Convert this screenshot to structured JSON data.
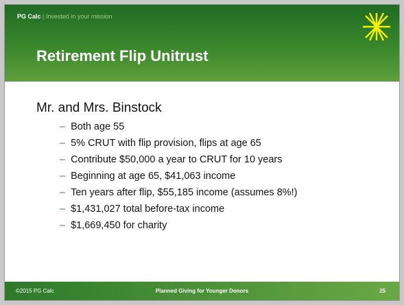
{
  "header": {
    "brand": "PG Calc",
    "separator": "|",
    "tagline": "Invested in your mission",
    "title": "Retirement Flip Unitrust"
  },
  "body": {
    "heading": "Mr. and Mrs. Binstock",
    "bullets": [
      "Both age 55",
      "5% CRUT with flip provision, flips at age 65",
      "Contribute $50,000 a year to CRUT for 10 years",
      "Beginning at age 65, $41,063 income",
      "Ten years after flip, $55,185 income (assumes 8%!)",
      "$1,431,027 total before-tax income",
      "$1,669,450 for charity"
    ],
    "dash": "–"
  },
  "footer": {
    "copyright": "©2015 PG Calc",
    "center": "Planned Giving for Younger Donors",
    "page": "25"
  }
}
